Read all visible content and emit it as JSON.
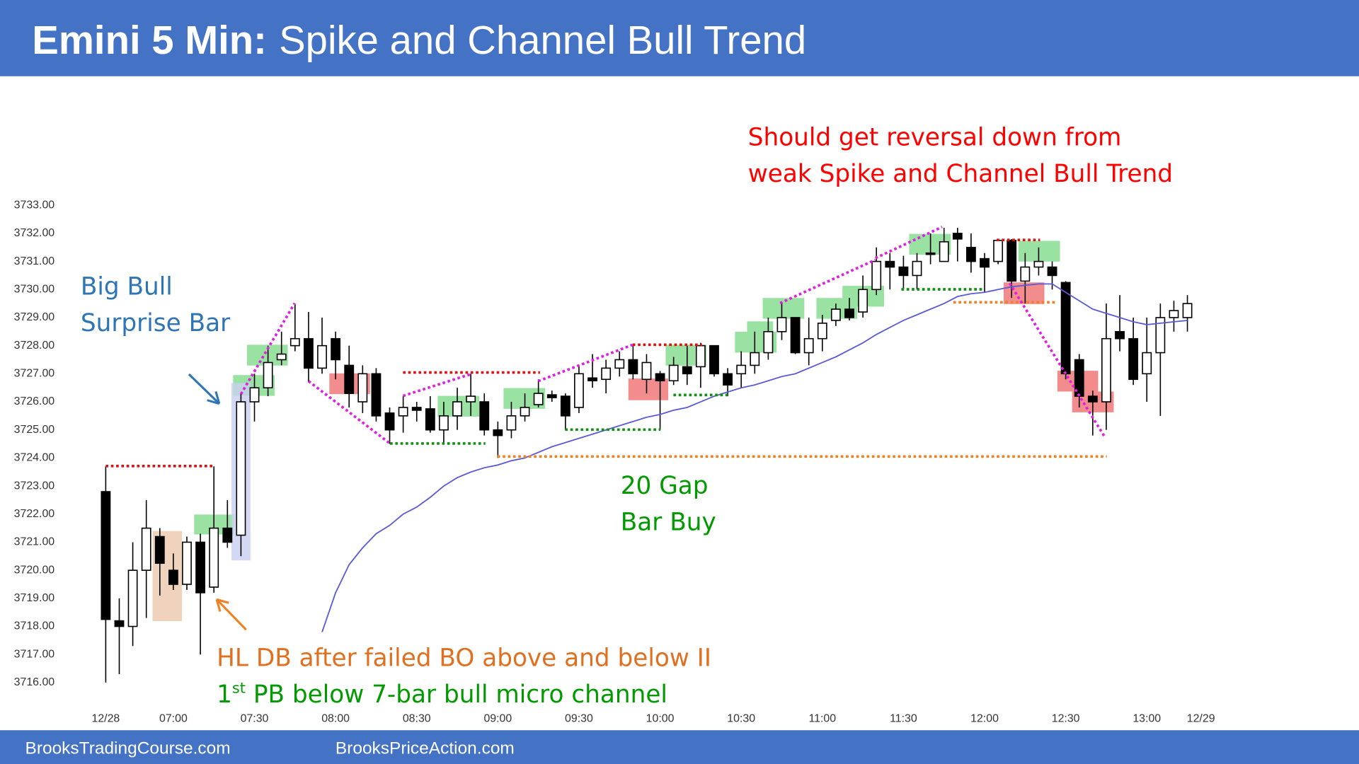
{
  "header": {
    "title_bold": "Emini 5 Min:",
    "title": "Spike and Channel Bull Trend"
  },
  "footer": {
    "left": "BrooksTradingCourse.com",
    "right": "BrooksPriceAction.com"
  },
  "chart_data": {
    "type": "candlestick",
    "x": [
      0,
      1,
      2,
      3,
      4,
      5,
      6,
      7,
      8,
      9,
      10,
      11,
      12,
      13,
      14,
      15,
      16,
      17,
      18,
      19,
      20,
      21,
      22,
      23,
      24,
      25,
      26,
      27,
      28,
      29,
      30,
      31,
      32,
      33,
      34,
      35,
      36,
      37,
      38,
      39,
      40,
      41,
      42,
      43,
      44,
      45,
      46,
      47,
      48,
      49,
      50,
      51,
      52,
      53,
      54,
      55,
      56,
      57,
      58,
      59,
      60,
      61,
      62,
      63,
      64,
      65,
      66,
      67,
      68,
      69,
      70,
      71,
      72,
      73,
      74,
      75,
      76,
      77,
      78,
      79,
      80
    ],
    "open": [
      3722.8,
      3718.2,
      3718.0,
      3720.0,
      3721.2,
      3720.0,
      3719.5,
      3721.0,
      3719.4,
      3721.5,
      3721.25,
      3726.0,
      3726.5,
      3727.5,
      3728.0,
      3728.25,
      3727.2,
      3728.25,
      3727.3,
      3726.0,
      3727.0,
      3725.6,
      3725.5,
      3725.8,
      3725.75,
      3725.0,
      3725.5,
      3726.0,
      3726.0,
      3725.0,
      3725.0,
      3725.5,
      3725.9,
      3726.25,
      3726.2,
      3725.8,
      3726.85,
      3726.8,
      3727.2,
      3727.5,
      3726.8,
      3727.0,
      3726.75,
      3727.25,
      3727.25,
      3728.0,
      3727.0,
      3727.0,
      3727.3,
      3727.75,
      3728.5,
      3729.0,
      3727.75,
      3728.25,
      3728.9,
      3729.3,
      3729.2,
      3730.0,
      3731.0,
      3730.8,
      3730.5,
      3731.3,
      3731.0,
      3732.0,
      3731.5,
      3731.1,
      3731.0,
      3731.75,
      3730.3,
      3730.8,
      3730.8,
      3730.25,
      3727.5,
      3726.2,
      3726.0,
      3728.5,
      3728.25,
      3727.0,
      3727.75,
      3729.0,
      3729.0
    ],
    "high": [
      3723.7,
      3719.0,
      3721.0,
      3722.5,
      3721.5,
      3720.6,
      3721.2,
      3721.3,
      3723.7,
      3722.5,
      3726.3,
      3727.0,
      3728.0,
      3728.5,
      3729.5,
      3729.2,
      3729.0,
      3728.5,
      3728.0,
      3727.3,
      3727.2,
      3725.8,
      3726.2,
      3726.0,
      3726.2,
      3726.0,
      3726.5,
      3727.0,
      3726.3,
      3725.3,
      3726.0,
      3726.3,
      3726.8,
      3726.4,
      3726.3,
      3727.3,
      3727.7,
      3727.5,
      3727.8,
      3728.0,
      3727.7,
      3727.1,
      3727.6,
      3728.0,
      3728.1,
      3728.0,
      3727.2,
      3727.8,
      3728.5,
      3729.0,
      3729.5,
      3729.0,
      3729.0,
      3729.1,
      3729.5,
      3729.7,
      3730.5,
      3731.5,
      3731.3,
      3731.2,
      3731.3,
      3732.0,
      3732.2,
      3732.2,
      3732.0,
      3731.3,
      3731.8,
      3731.8,
      3731.3,
      3731.5,
      3731.0,
      3730.3,
      3727.7,
      3726.4,
      3729.5,
      3729.8,
      3729.0,
      3729.0,
      3729.5,
      3729.6,
      3729.8
    ],
    "low": [
      3716.0,
      3716.3,
      3717.3,
      3718.3,
      3719.1,
      3719.3,
      3719.3,
      3717.0,
      3719.2,
      3720.8,
      3720.5,
      3725.3,
      3726.2,
      3727.3,
      3727.8,
      3726.7,
      3727.0,
      3726.8,
      3725.8,
      3725.6,
      3725.3,
      3724.5,
      3724.9,
      3725.3,
      3724.9,
      3724.5,
      3725.0,
      3725.5,
      3724.8,
      3724.0,
      3724.7,
      3725.3,
      3725.8,
      3726.0,
      3725.0,
      3725.6,
      3726.5,
      3726.3,
      3726.9,
      3726.8,
      3726.3,
      3725.0,
      3726.6,
      3726.6,
      3726.5,
      3726.9,
      3726.2,
      3726.5,
      3727.0,
      3727.5,
      3728.2,
      3727.7,
      3727.3,
      3727.8,
      3728.7,
      3728.9,
      3729.0,
      3729.8,
      3730.0,
      3730.0,
      3730.0,
      3730.9,
      3731.0,
      3731.0,
      3730.6,
      3729.9,
      3730.9,
      3729.7,
      3729.5,
      3730.5,
      3730.0,
      3726.8,
      3725.8,
      3724.8,
      3725.0,
      3727.8,
      3726.6,
      3726.0,
      3725.5,
      3728.5,
      3728.5
    ],
    "close": [
      3718.25,
      3718.0,
      3720.0,
      3721.5,
      3720.25,
      3719.5,
      3721.0,
      3719.2,
      3721.5,
      3721.0,
      3726.0,
      3726.5,
      3727.4,
      3727.7,
      3728.25,
      3727.2,
      3728.0,
      3727.5,
      3726.3,
      3727.0,
      3725.5,
      3725.0,
      3725.8,
      3725.7,
      3725.0,
      3725.5,
      3726.0,
      3726.2,
      3725.0,
      3724.8,
      3725.5,
      3725.8,
      3726.3,
      3726.15,
      3725.5,
      3727.0,
      3726.75,
      3727.2,
      3727.5,
      3727.0,
      3727.4,
      3726.75,
      3727.3,
      3727.0,
      3728.0,
      3727.0,
      3726.6,
      3727.3,
      3727.75,
      3728.5,
      3729.0,
      3727.75,
      3728.25,
      3728.8,
      3729.3,
      3729.0,
      3730.0,
      3731.0,
      3730.8,
      3730.5,
      3731.0,
      3731.25,
      3731.7,
      3731.8,
      3731.0,
      3730.8,
      3731.75,
      3730.3,
      3730.8,
      3731.0,
      3730.5,
      3727.0,
      3726.2,
      3726.0,
      3728.25,
      3728.25,
      3726.8,
      3727.75,
      3729.0,
      3729.25,
      3729.5
    ],
    "up_color": "#ffffff",
    "down_color": "#000000",
    "ema": {
      "color": "#5b5bd6",
      "values": [
        null,
        null,
        null,
        null,
        null,
        null,
        null,
        null,
        null,
        null,
        null,
        null,
        null,
        null,
        null,
        null,
        3717.8,
        3719.2,
        3720.2,
        3720.8,
        3721.3,
        3721.6,
        3722.0,
        3722.25,
        3722.6,
        3723.0,
        3723.3,
        3723.5,
        3723.65,
        3723.75,
        3723.9,
        3724.0,
        3724.2,
        3724.4,
        3724.55,
        3724.7,
        3724.85,
        3725.0,
        3725.15,
        3725.3,
        3725.45,
        3725.55,
        3725.7,
        3725.8,
        3726.0,
        3726.2,
        3726.35,
        3726.5,
        3726.6,
        3726.75,
        3726.9,
        3727.0,
        3727.2,
        3727.4,
        3727.6,
        3727.85,
        3728.1,
        3728.4,
        3728.65,
        3728.9,
        3729.1,
        3729.3,
        3729.5,
        3729.75,
        3729.85,
        3729.9,
        3730.0,
        3730.1,
        3730.15,
        3730.2,
        3730.2,
        3729.9,
        3729.6,
        3729.3,
        3729.15,
        3729.0,
        3728.85,
        3728.75,
        3728.8,
        3728.85,
        3728.9
      ]
    },
    "xlim": [
      -1,
      82
    ],
    "ylim": [
      3716,
      3733
    ],
    "yticks": [
      {
        "value": 3733,
        "label": "3733.00"
      },
      {
        "value": 3732,
        "label": "3732.00"
      },
      {
        "value": 3731,
        "label": "3731.00"
      },
      {
        "value": 3730,
        "label": "3730.00"
      },
      {
        "value": 3729,
        "label": "3729.00"
      },
      {
        "value": 3728,
        "label": "3728.00"
      },
      {
        "value": 3727,
        "label": "3727.00"
      },
      {
        "value": 3726,
        "label": "3726.00"
      },
      {
        "value": 3725,
        "label": "3725.00"
      },
      {
        "value": 3724,
        "label": "3724.00"
      },
      {
        "value": 3723,
        "label": "3723.00"
      },
      {
        "value": 3722,
        "label": "3722.00"
      },
      {
        "value": 3721,
        "label": "3721.00"
      },
      {
        "value": 3720,
        "label": "3720.00"
      },
      {
        "value": 3719,
        "label": "3719.00"
      },
      {
        "value": 3718,
        "label": "3718.00"
      },
      {
        "value": 3717,
        "label": "3717.00"
      },
      {
        "value": 3716,
        "label": "3716.00"
      }
    ],
    "xticks": [
      {
        "value": 0,
        "label": "12/28"
      },
      {
        "value": 5,
        "label": "07:00"
      },
      {
        "value": 11,
        "label": "07:30"
      },
      {
        "value": 17,
        "label": "08:00"
      },
      {
        "value": 23,
        "label": "08:30"
      },
      {
        "value": 29,
        "label": "09:00"
      },
      {
        "value": 35,
        "label": "09:30"
      },
      {
        "value": 41,
        "label": "10:00"
      },
      {
        "value": 47,
        "label": "10:30"
      },
      {
        "value": 53,
        "label": "11:00"
      },
      {
        "value": 59,
        "label": "11:30"
      },
      {
        "value": 65,
        "label": "12:00"
      },
      {
        "value": 71,
        "label": "12:30"
      },
      {
        "value": 77,
        "label": "13:00"
      },
      {
        "value": 81,
        "label": "12/29"
      }
    ],
    "annotations": [
      {
        "lines": [
          "Big Bull",
          "Surprise Bar"
        ],
        "color": "#2e75b6"
      },
      {
        "lines": [
          "Should get reversal down from",
          "weak Spike and Channel Bull Trend"
        ],
        "color": "#ff0000"
      },
      {
        "lines": [
          "20 Gap",
          "Bar Buy"
        ],
        "color": "#009a00"
      },
      {
        "lines": [
          "HL DB after failed BO above and below II"
        ],
        "color": "#e07020"
      },
      {
        "lines": [
          "1",
          "st",
          " PB below 7-bar bull micro channel"
        ],
        "color": "#009a00"
      }
    ]
  }
}
